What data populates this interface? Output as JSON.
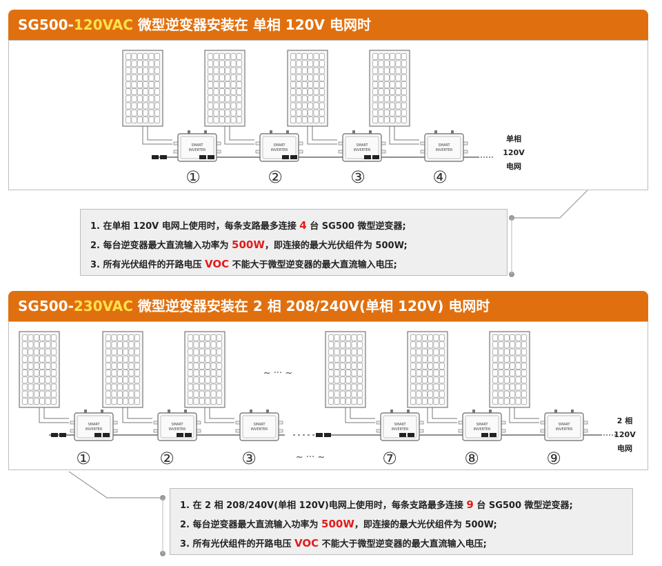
{
  "section1": {
    "title_prefix": "SG500-",
    "title_highlight": "120VAC",
    "title_suffix": " 微型逆变器安装在 单相 120V 电网时",
    "inverter_label_1": "SMART",
    "inverter_label_2": "INVERTER",
    "nodes": [
      "①",
      "②",
      "③",
      "④"
    ],
    "grid_label": [
      "单相",
      "120V",
      "电网"
    ],
    "notes": [
      {
        "pre": "1. 在单相 120V 电网上使用时，每条支路最多连接 ",
        "hl": "4",
        "post": " 台 SG500 微型逆变器;"
      },
      {
        "pre": "2. 每台逆变器最大直流输入功率为 ",
        "hl": "500W",
        "post": "，即连接的最大光伏组件为 500W;"
      },
      {
        "pre": "3. 所有光伏组件的开路电压 ",
        "hl": "VOC",
        "post": " 不能大于微型逆变器的最大直流输入电压;"
      }
    ]
  },
  "section2": {
    "title_prefix": "SG500-",
    "title_highlight": "230VAC",
    "title_suffix": " 微型逆变器安装在 2 相 208/240V(单相 120V)  电网时",
    "inverter_label_1": "SMART",
    "inverter_label_2": "INVERTER",
    "nodes": [
      "①",
      "②",
      "③",
      "⑦",
      "⑧",
      "⑨"
    ],
    "ellipsis": "~ ··· ~",
    "grid_label": [
      "2 相",
      "120V",
      "电网"
    ],
    "notes": [
      {
        "pre": "1. 在 2 相 208/240V(单相 120V)电网上使用时，每条支路最多连接 ",
        "hl": "9",
        "post": " 台 SG500 微型逆变器;"
      },
      {
        "pre": "2. 每台逆变器最大直流输入功率为 ",
        "hl": "500W",
        "post": "，即连接的最大光伏组件为 500W;"
      },
      {
        "pre": "3. 所有光伏组件的开路电压 ",
        "hl": "VOC",
        "post": " 不能大于微型逆变器的最大直流输入电压;"
      }
    ]
  }
}
